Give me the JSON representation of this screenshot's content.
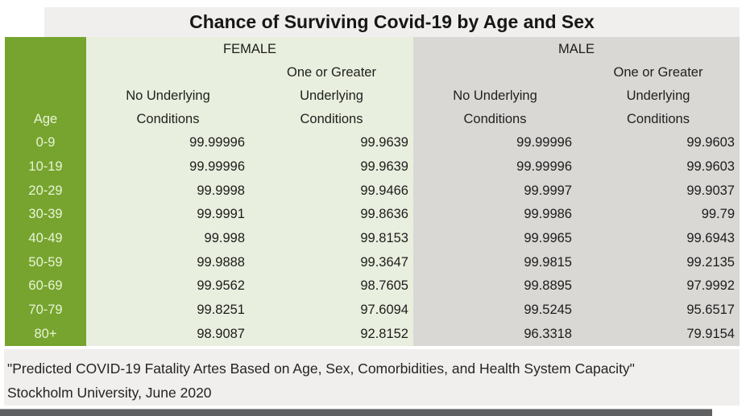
{
  "title": "Chance of Surviving Covid-19 by Age and Sex",
  "colors": {
    "age_column_green": "#76A42E",
    "female_bg": "#E9EFDE",
    "male_bg": "#D9D8D5",
    "band_bg": "#F0EFED",
    "bottom_bar": "#5F6062"
  },
  "table": {
    "age_header": "Age",
    "female": {
      "label": "FEMALE",
      "col1_lines": [
        "No Underlying",
        "Conditions"
      ],
      "col2_lines": [
        "One or Greater",
        "Underlying",
        "Conditions"
      ]
    },
    "male": {
      "label": "MALE",
      "col1_lines": [
        "No Underlying",
        "Conditions"
      ],
      "col2_lines": [
        "One or Greater",
        "Underlying",
        "Conditions"
      ]
    },
    "rows": [
      {
        "age": "0-9",
        "female_no": "99.99996",
        "female_one": "99.9639",
        "male_no": "99.99996",
        "male_one": "99.9603"
      },
      {
        "age": "10-19",
        "female_no": "99.99996",
        "female_one": "99.9639",
        "male_no": "99.99996",
        "male_one": "99.9603"
      },
      {
        "age": "20-29",
        "female_no": "99.9998",
        "female_one": "99.9466",
        "male_no": "99.9997",
        "male_one": "99.9037"
      },
      {
        "age": "30-39",
        "female_no": "99.9991",
        "female_one": "99.8636",
        "male_no": "99.9986",
        "male_one": "99.79"
      },
      {
        "age": "40-49",
        "female_no": "99.998",
        "female_one": "99.8153",
        "male_no": "99.9965",
        "male_one": "99.6943"
      },
      {
        "age": "50-59",
        "female_no": "99.9888",
        "female_one": "99.3647",
        "male_no": "99.9815",
        "male_one": "99.2135"
      },
      {
        "age": "60-69",
        "female_no": "99.9562",
        "female_one": "98.7605",
        "male_no": "99.8895",
        "male_one": "97.9992"
      },
      {
        "age": "70-79",
        "female_no": "99.8251",
        "female_one": "97.6094",
        "male_no": "99.5245",
        "male_one": "95.6517"
      },
      {
        "age": "80+",
        "female_no": "98.9087",
        "female_one": "92.8152",
        "male_no": "96.3318",
        "male_one": "79.9154"
      }
    ]
  },
  "footer": {
    "line1": "\"Predicted COVID-19 Fatality Artes Based on Age, Sex, Comorbidities, and Health System Capacity\"",
    "line2": "Stockholm University, June 2020"
  },
  "chart_data": {
    "type": "table",
    "title": "Chance of Surviving Covid-19 by Age and Sex",
    "columns": [
      "Age",
      "Female - No Underlying Conditions",
      "Female - One or Greater Underlying Conditions",
      "Male - No Underlying Conditions",
      "Male - One or Greater Underlying Conditions"
    ],
    "rows": [
      [
        "0-9",
        99.99996,
        99.9639,
        99.99996,
        99.9603
      ],
      [
        "10-19",
        99.99996,
        99.9639,
        99.99996,
        99.9603
      ],
      [
        "20-29",
        99.9998,
        99.9466,
        99.9997,
        99.9037
      ],
      [
        "30-39",
        99.9991,
        99.8636,
        99.9986,
        99.79
      ],
      [
        "40-49",
        99.998,
        99.8153,
        99.9965,
        99.6943
      ],
      [
        "50-59",
        99.9888,
        99.3647,
        99.9815,
        99.2135
      ],
      [
        "60-69",
        99.9562,
        98.7605,
        99.8895,
        97.9992
      ],
      [
        "70-79",
        99.8251,
        97.6094,
        99.5245,
        95.6517
      ],
      [
        "80+",
        98.9087,
        92.8152,
        96.3318,
        79.9154
      ]
    ],
    "source": "Stockholm University, June 2020"
  }
}
